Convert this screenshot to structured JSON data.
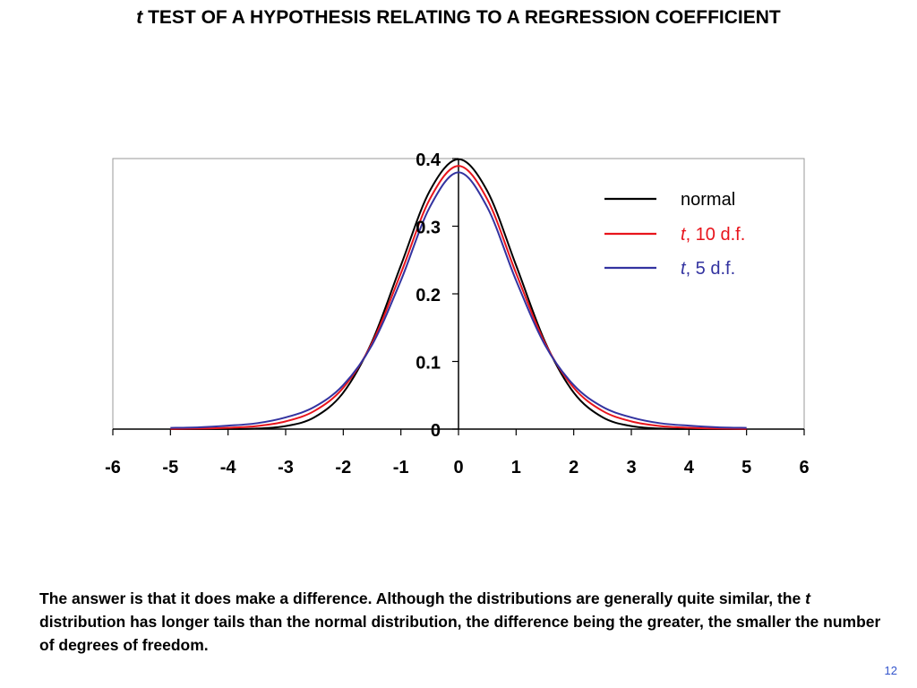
{
  "slide": {
    "title_italic": "t",
    "title_rest": " TEST OF A HYPOTHESIS RELATING TO A REGRESSION COEFFICIENT",
    "caption_part1": "The answer is that it does make a difference.  Although the distributions are generally quite similar, the ",
    "caption_italic": "t",
    "caption_part2": " distribution has longer tails than the normal distribution, the difference being the greater, the smaller the number of degrees of freedom.",
    "page_number": "12"
  },
  "chart_data": {
    "type": "line",
    "title": "",
    "xlabel": "",
    "ylabel": "",
    "xlim": [
      -6,
      6
    ],
    "ylim": [
      0,
      0.4
    ],
    "x_ticks": [
      "-6",
      "-5",
      "-4",
      "-3",
      "-2",
      "-1",
      "0",
      "1",
      "2",
      "3",
      "4",
      "5",
      "6"
    ],
    "y_ticks": [
      "0",
      "0.1",
      "0.2",
      "0.3",
      "0.4"
    ],
    "grid": false,
    "legend_position": "top-right",
    "x": [
      -5,
      -4.5,
      -4,
      -3.5,
      -3,
      -2.5,
      -2,
      -1.5,
      -1,
      -0.5,
      0,
      0.5,
      1,
      1.5,
      2,
      2.5,
      3,
      3.5,
      4,
      4.5,
      5
    ],
    "series": [
      {
        "name": "normal",
        "name_italic": "",
        "name_rest": "normal",
        "color": "#000000",
        "values": [
          1.5e-06,
          1.6e-05,
          0.000134,
          0.000873,
          0.00443,
          0.0175,
          0.054,
          0.1295,
          0.242,
          0.352,
          0.399,
          0.352,
          0.242,
          0.1295,
          0.054,
          0.0175,
          0.00443,
          0.000873,
          0.000134,
          1.6e-05,
          1.5e-06
        ]
      },
      {
        "name": "t, 10 d.f.",
        "name_italic": "t",
        "name_rest": ", 10 d.f.",
        "color": "#e8141c",
        "values": [
          0.0004,
          0.0008,
          0.002,
          0.0045,
          0.0114,
          0.0269,
          0.0611,
          0.1274,
          0.2304,
          0.3397,
          0.3891,
          0.3397,
          0.2304,
          0.1274,
          0.0611,
          0.0269,
          0.0114,
          0.0045,
          0.002,
          0.0008,
          0.0004
        ]
      },
      {
        "name": "t, 5 d.f.",
        "name_italic": "t",
        "name_rest": ", 5 d.f.",
        "color": "#3333a0",
        "values": [
          0.0018,
          0.0027,
          0.0051,
          0.0087,
          0.0173,
          0.0329,
          0.0651,
          0.1245,
          0.2197,
          0.3279,
          0.3796,
          0.3279,
          0.2197,
          0.1245,
          0.0651,
          0.0329,
          0.0173,
          0.0087,
          0.0051,
          0.0027,
          0.0018
        ]
      }
    ]
  }
}
